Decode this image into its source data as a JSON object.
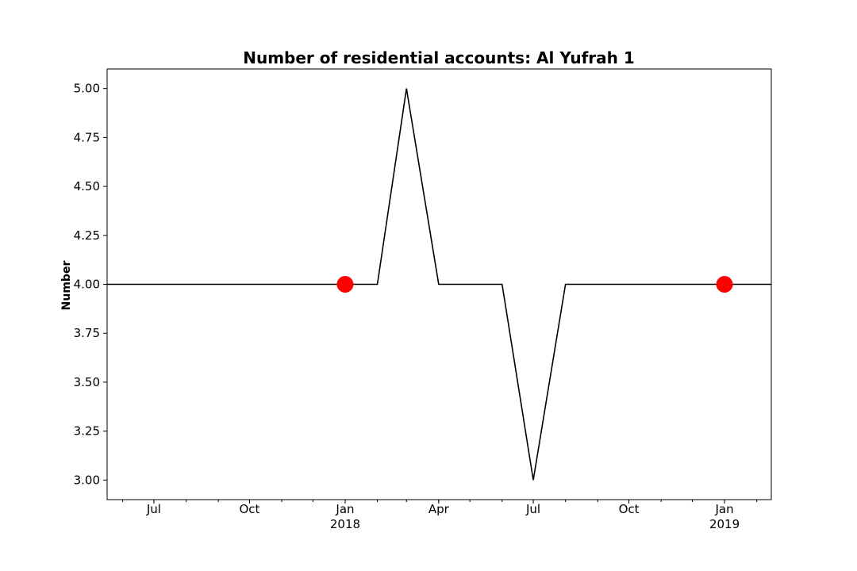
{
  "chart_data": {
    "type": "line",
    "title": "Number of residential accounts: Al Yufrah 1",
    "xlabel": "",
    "ylabel": "Number",
    "xlim": [
      "2017-05-17",
      "2019-02-15"
    ],
    "ylim": [
      2.9,
      5.1
    ],
    "yticks": [
      3.0,
      3.25,
      3.5,
      3.75,
      4.0,
      4.25,
      4.5,
      4.75,
      5.0
    ],
    "ytick_labels": [
      "3.00",
      "3.25",
      "3.50",
      "3.75",
      "4.00",
      "4.25",
      "4.50",
      "4.75",
      "5.00"
    ],
    "xticks": [
      {
        "date": "2017-07-01",
        "label": "Jul",
        "sublabel": ""
      },
      {
        "date": "2017-10-01",
        "label": "Oct",
        "sublabel": ""
      },
      {
        "date": "2018-01-01",
        "label": "Jan",
        "sublabel": "2018"
      },
      {
        "date": "2018-04-01",
        "label": "Apr",
        "sublabel": ""
      },
      {
        "date": "2018-07-01",
        "label": "Jul",
        "sublabel": ""
      },
      {
        "date": "2018-10-01",
        "label": "Oct",
        "sublabel": ""
      },
      {
        "date": "2019-01-01",
        "label": "Jan",
        "sublabel": "2019"
      }
    ],
    "minor_ticks": "monthly",
    "grid": false,
    "series": [
      {
        "color": "#000000",
        "x": [
          "2017-05-01",
          "2017-06-01",
          "2017-07-01",
          "2017-08-01",
          "2017-09-01",
          "2017-10-01",
          "2017-11-01",
          "2017-12-01",
          "2018-01-01",
          "2018-02-01",
          "2018-03-01",
          "2018-04-01",
          "2018-05-01",
          "2018-06-01",
          "2018-07-01",
          "2018-08-01",
          "2018-09-01",
          "2018-10-01",
          "2018-11-01",
          "2018-12-01",
          "2019-01-01",
          "2019-02-01",
          "2019-03-01"
        ],
        "y": [
          4,
          4,
          4,
          4,
          4,
          4,
          4,
          4,
          4,
          4,
          5,
          4,
          4,
          4,
          3,
          4,
          4,
          4,
          4,
          4,
          4,
          4,
          4
        ]
      }
    ],
    "markers": [
      {
        "date": "2018-01-01",
        "value": 4.0,
        "color": "#ff0000"
      },
      {
        "date": "2019-01-01",
        "value": 4.0,
        "color": "#ff0000"
      }
    ]
  }
}
